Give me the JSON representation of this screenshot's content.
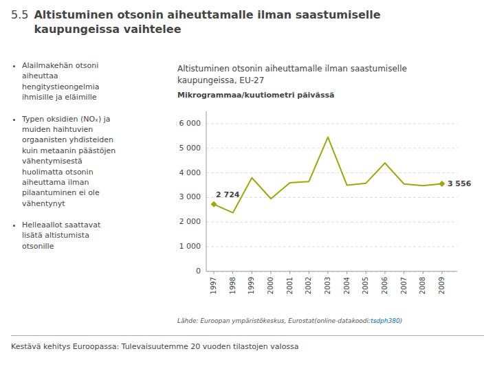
{
  "title_number": "5.5",
  "title": "Altistuminen otsonin aiheuttamalle ilman saastumiselle\nkaupungeissa vaihtelee",
  "bullets": [
    "Alailmakehän otsoni\naiheuttaa\nhengitystieongelmia\nihmisille ja eläimille",
    "Typen oksidien (NOₓ) ja\nmuiden haihtuvien\norgaanisten yhdisteiden\nkuin metaanin päästöjen\nvähentymisestä\nhuolimatta otsonin\naiheuttama ilman\npilaantuminen ei ole\nvähentynyt",
    "Helleaallot saattavat\nlisätä altistumista\notsonille"
  ],
  "source_pre": "Lähde: Euroopan ympäristökeskus, Eurostat(online-datakoodi:",
  "source_link": "tsdph380",
  "source_post": ")",
  "footer": "Kestävä kehitys Euroopassa: Tulevaisuutemme 20 vuoden tilastojen valossa",
  "chart_data": {
    "type": "line",
    "title": "Altistuminen otsonin aiheuttamalle ilman saastumiselle\nkaupungeissa, EU-27",
    "subtitle": "Mikrogrammaa/kuutiometri päivässä",
    "x": [
      1997,
      1998,
      1999,
      2000,
      2001,
      2002,
      2003,
      2004,
      2005,
      2006,
      2007,
      2008,
      2009
    ],
    "values": [
      2724,
      2380,
      3800,
      2950,
      3600,
      3650,
      5450,
      3500,
      3580,
      4400,
      3550,
      3480,
      3556
    ],
    "value_labels": [
      "2 724",
      null,
      null,
      null,
      null,
      null,
      null,
      null,
      null,
      null,
      null,
      null,
      "3 556"
    ],
    "color": "#9aaa00",
    "marker": "diamond",
    "xlim": [
      1996.6,
      2009.8
    ],
    "xticks": [
      1997,
      1998,
      1999,
      2000,
      2001,
      2002,
      2003,
      2004,
      2005,
      2006,
      2007,
      2008,
      2009
    ],
    "ylim": [
      0,
      6500
    ],
    "yticks": [
      0,
      {
        "value": 1000,
        "label": "1 000"
      },
      {
        "value": 2000,
        "label": "2 000"
      },
      {
        "value": 3000,
        "label": "3 000"
      },
      {
        "value": 4000,
        "label": "4 000"
      },
      {
        "value": 5000,
        "label": "5 000"
      },
      {
        "value": 6000,
        "label": "6 000"
      }
    ],
    "grid": true
  }
}
